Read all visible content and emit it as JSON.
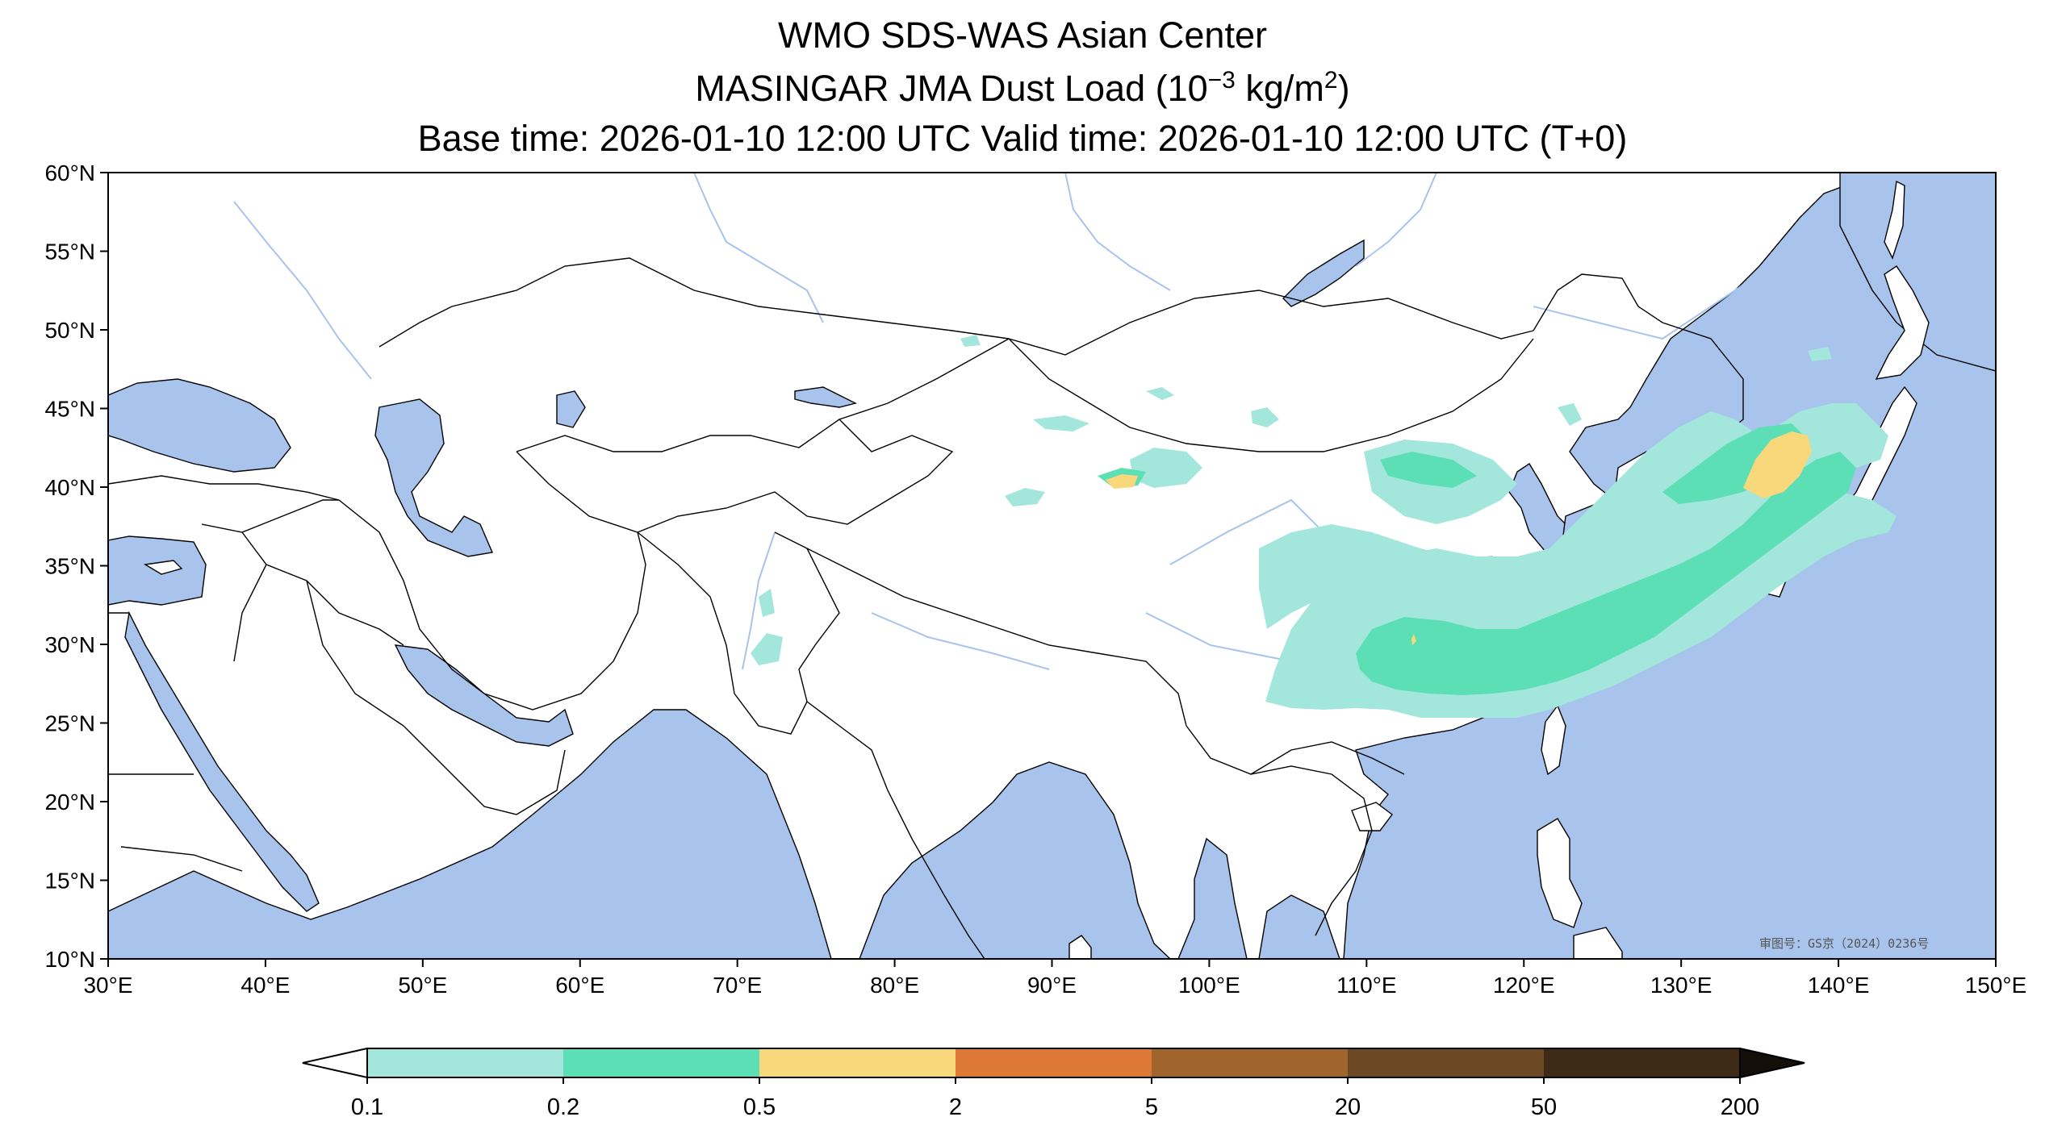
{
  "title": {
    "line1": "WMO SDS-WAS Asian Center",
    "line2_prefix": "MASINGAR JMA Dust Load (10",
    "line2_exp": "−3",
    "line2_mid": " kg/m",
    "line2_exp2": "2",
    "line2_suffix": ")",
    "line3": "Base time: 2026-01-10 12:00 UTC Valid time: 2026-01-10 12:00 UTC (T+0)"
  },
  "map": {
    "extent": {
      "lon_min": 30,
      "lon_max": 150,
      "lat_min": 10,
      "lat_max": 60
    },
    "xticks": [
      "30°E",
      "40°E",
      "50°E",
      "60°E",
      "70°E",
      "80°E",
      "90°E",
      "100°E",
      "110°E",
      "120°E",
      "130°E",
      "140°E",
      "150°E"
    ],
    "yticks": [
      "10°N",
      "15°N",
      "20°N",
      "25°N",
      "30°N",
      "35°N",
      "40°N",
      "45°N",
      "50°N",
      "55°N",
      "60°N"
    ],
    "approval_number": "审图号：GS京（2024）0236号",
    "colors": {
      "ocean": "#a9c4ec",
      "land": "#ffffff",
      "border": "#000000",
      "river": "#a9c4ec"
    }
  },
  "colorbar": {
    "labels": [
      "0.1",
      "0.2",
      "0.5",
      "2",
      "5",
      "20",
      "50",
      "200"
    ],
    "colors": [
      "#a3e7dc",
      "#5ddfb6",
      "#f9d77b",
      "#de7837",
      "#a0642d",
      "#6c4824",
      "#3f2a18"
    ],
    "extend": "both",
    "under_color": "#ffffff",
    "over_color": "#140e08"
  }
}
